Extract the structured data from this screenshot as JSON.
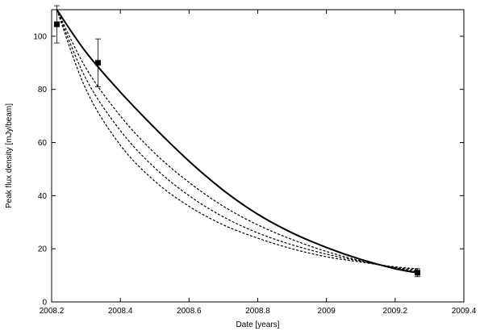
{
  "chart_data": {
    "type": "line",
    "xlabel": "Date [years]",
    "ylabel": "Peak flux density [mJy/beam]",
    "xlim": [
      2008.2,
      2009.4
    ],
    "ylim": [
      0,
      110
    ],
    "x_ticks": [
      2008.2,
      2008.4,
      2008.6,
      2008.8,
      2009.0,
      2009.2,
      2009.4
    ],
    "x_tick_labels": [
      "2008.2",
      "2008.4",
      "2008.6",
      "2008.8",
      "2009",
      "2009.2",
      "2009.4"
    ],
    "y_ticks": [
      0,
      20,
      40,
      60,
      80,
      100
    ],
    "y_tick_labels": [
      "0",
      "20",
      "40",
      "60",
      "80",
      "100"
    ],
    "grid": false,
    "legend": "none",
    "measurements": [
      {
        "x": 2008.215,
        "y": 104.5,
        "yerr_low": 97.5,
        "yerr_high": 111.5
      },
      {
        "x": 2008.335,
        "y": 90.0,
        "yerr_low": 81.0,
        "yerr_high": 99.0
      },
      {
        "x": 2009.265,
        "y": 11.0,
        "yerr_low": 9.5,
        "yerr_high": 12.5
      }
    ],
    "series": [
      {
        "style": "solid",
        "x": [
          2008.215,
          2008.3,
          2008.4,
          2008.5,
          2008.6,
          2008.7,
          2008.8,
          2008.9,
          2009.0,
          2009.1,
          2009.2,
          2009.265
        ],
        "y": [
          110.0,
          94.0,
          79.0,
          65.5,
          53.0,
          42.0,
          33.0,
          26.0,
          20.5,
          16.0,
          12.5,
          11.0
        ]
      },
      {
        "style": "dashed",
        "x": [
          2008.215,
          2008.3,
          2008.4,
          2008.5,
          2008.6,
          2008.7,
          2008.8,
          2008.9,
          2009.0,
          2009.1,
          2009.2,
          2009.265
        ],
        "y": [
          110.0,
          88.0,
          70.0,
          56.0,
          45.0,
          36.0,
          29.0,
          23.5,
          19.0,
          15.5,
          12.8,
          11.5
        ]
      },
      {
        "style": "dashed",
        "x": [
          2008.215,
          2008.3,
          2008.4,
          2008.5,
          2008.6,
          2008.7,
          2008.8,
          2008.9,
          2009.0,
          2009.1,
          2009.2,
          2009.265
        ],
        "y": [
          110.0,
          84.0,
          64.5,
          50.5,
          40.0,
          32.0,
          26.0,
          21.5,
          18.0,
          15.3,
          13.0,
          12.0
        ]
      },
      {
        "style": "dashed",
        "x": [
          2008.215,
          2008.3,
          2008.4,
          2008.5,
          2008.6,
          2008.7,
          2008.8,
          2008.9,
          2009.0,
          2009.1,
          2009.2,
          2009.265
        ],
        "y": [
          110.0,
          80.0,
          59.0,
          45.5,
          36.0,
          29.0,
          24.0,
          20.0,
          17.0,
          15.0,
          13.2,
          12.5
        ]
      }
    ]
  }
}
